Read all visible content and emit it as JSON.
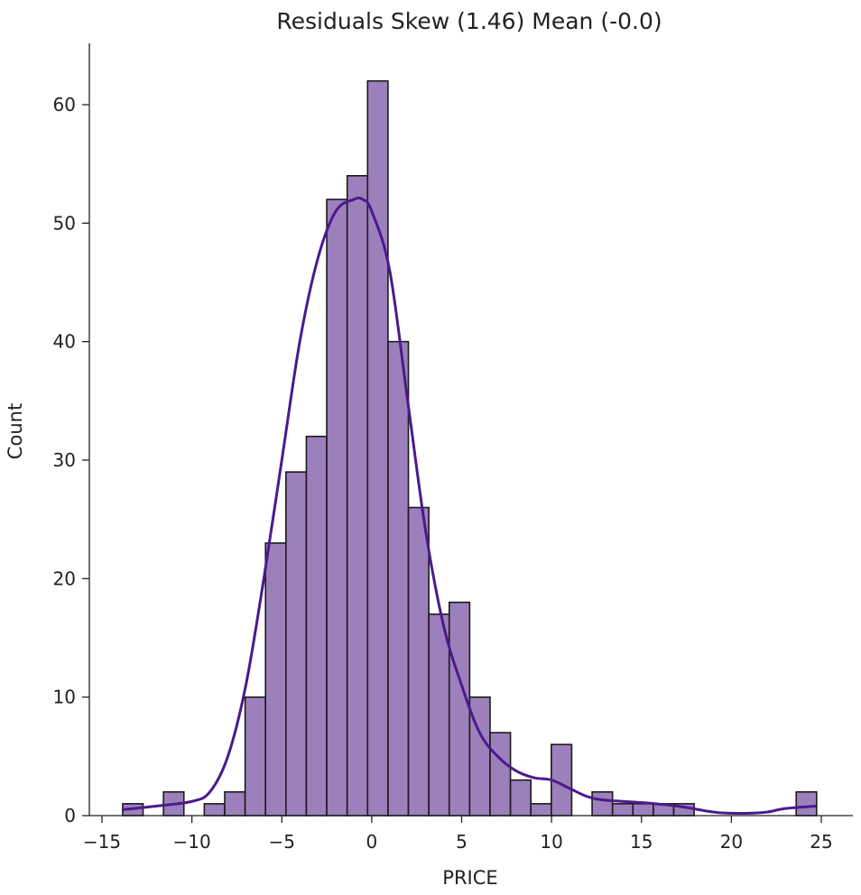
{
  "chart_data": {
    "type": "bar",
    "title": "Residuals Skew (1.46) Mean (-0.0)",
    "xlabel": "PRICE",
    "ylabel": "Count",
    "xlim": [
      -15.3,
      26.8
    ],
    "ylim": [
      0,
      65
    ],
    "xticks": [
      -15,
      -10,
      -5,
      0,
      5,
      10,
      15,
      20,
      25
    ],
    "yticks": [
      0,
      10,
      20,
      30,
      40,
      50,
      60
    ],
    "grid": false,
    "bin_start": -13.85,
    "bin_width": 1.135,
    "counts": [
      1,
      0,
      2,
      0,
      1,
      2,
      10,
      23,
      29,
      32,
      52,
      54,
      62,
      40,
      26,
      17,
      18,
      10,
      7,
      3,
      1,
      6,
      0,
      2,
      1,
      1,
      1,
      1,
      0,
      0,
      0,
      0,
      0,
      2
    ],
    "kde": {
      "x": [
        -13.9,
        -12,
        -10,
        -9,
        -8,
        -7,
        -6,
        -5,
        -4,
        -3,
        -2,
        -1,
        -0.5,
        0,
        1,
        2,
        3,
        4,
        5,
        6,
        7,
        8,
        9,
        10,
        11,
        12,
        13,
        15,
        17,
        19,
        20,
        21,
        22,
        23,
        24.7
      ],
      "y": [
        0.5,
        0.8,
        1.2,
        2,
        5,
        11,
        20,
        30,
        40,
        47,
        51,
        52,
        52,
        51,
        46,
        35,
        24,
        16,
        11,
        7,
        5,
        3.8,
        3.2,
        3,
        2.3,
        1.6,
        1.3,
        1.1,
        0.8,
        0.3,
        0.2,
        0.2,
        0.3,
        0.6,
        0.8
      ]
    },
    "colors": {
      "bar_fill": "#9c80bc",
      "bar_edge": "#1a1a1a",
      "kde_line": "#4a1a8c"
    }
  }
}
